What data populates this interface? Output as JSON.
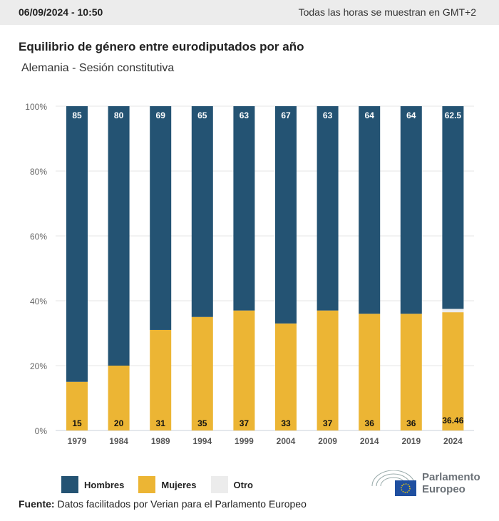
{
  "header": {
    "date": "06/09/2024 - 10:50",
    "timezone": "Todas las horas se muestran en GMT+2"
  },
  "title": "Equilibrio de género entre eurodiputados por año",
  "subtitle": "Alemania - Sesión constitutiva",
  "chart_data": {
    "type": "bar",
    "stacked": true,
    "categories": [
      "1979",
      "1984",
      "1989",
      "1994",
      "1999",
      "2004",
      "2009",
      "2014",
      "2019",
      "2024"
    ],
    "series": [
      {
        "name": "Mujeres",
        "color": "#ecb534",
        "values": [
          15,
          20,
          31,
          35,
          37,
          33,
          37,
          36,
          36,
          36.46
        ]
      },
      {
        "name": "Otro",
        "color": "#ececec",
        "values": [
          0,
          0,
          0,
          0,
          0,
          0,
          0,
          0,
          0,
          1.04
        ]
      },
      {
        "name": "Hombres",
        "color": "#245373",
        "values": [
          85,
          80,
          69,
          65,
          63,
          67,
          63,
          64,
          64,
          62.5
        ]
      }
    ],
    "ylim": [
      0,
      100
    ],
    "yticks": [
      "0%",
      "20%",
      "40%",
      "60%",
      "80%",
      "100%"
    ],
    "legend": "bottom-left"
  },
  "source": {
    "label": "Fuente:",
    "text": "Datos facilitados por Verian para el Parlamento Europeo"
  },
  "logo": {
    "line1": "Parlamento",
    "line2": "Europeo"
  }
}
